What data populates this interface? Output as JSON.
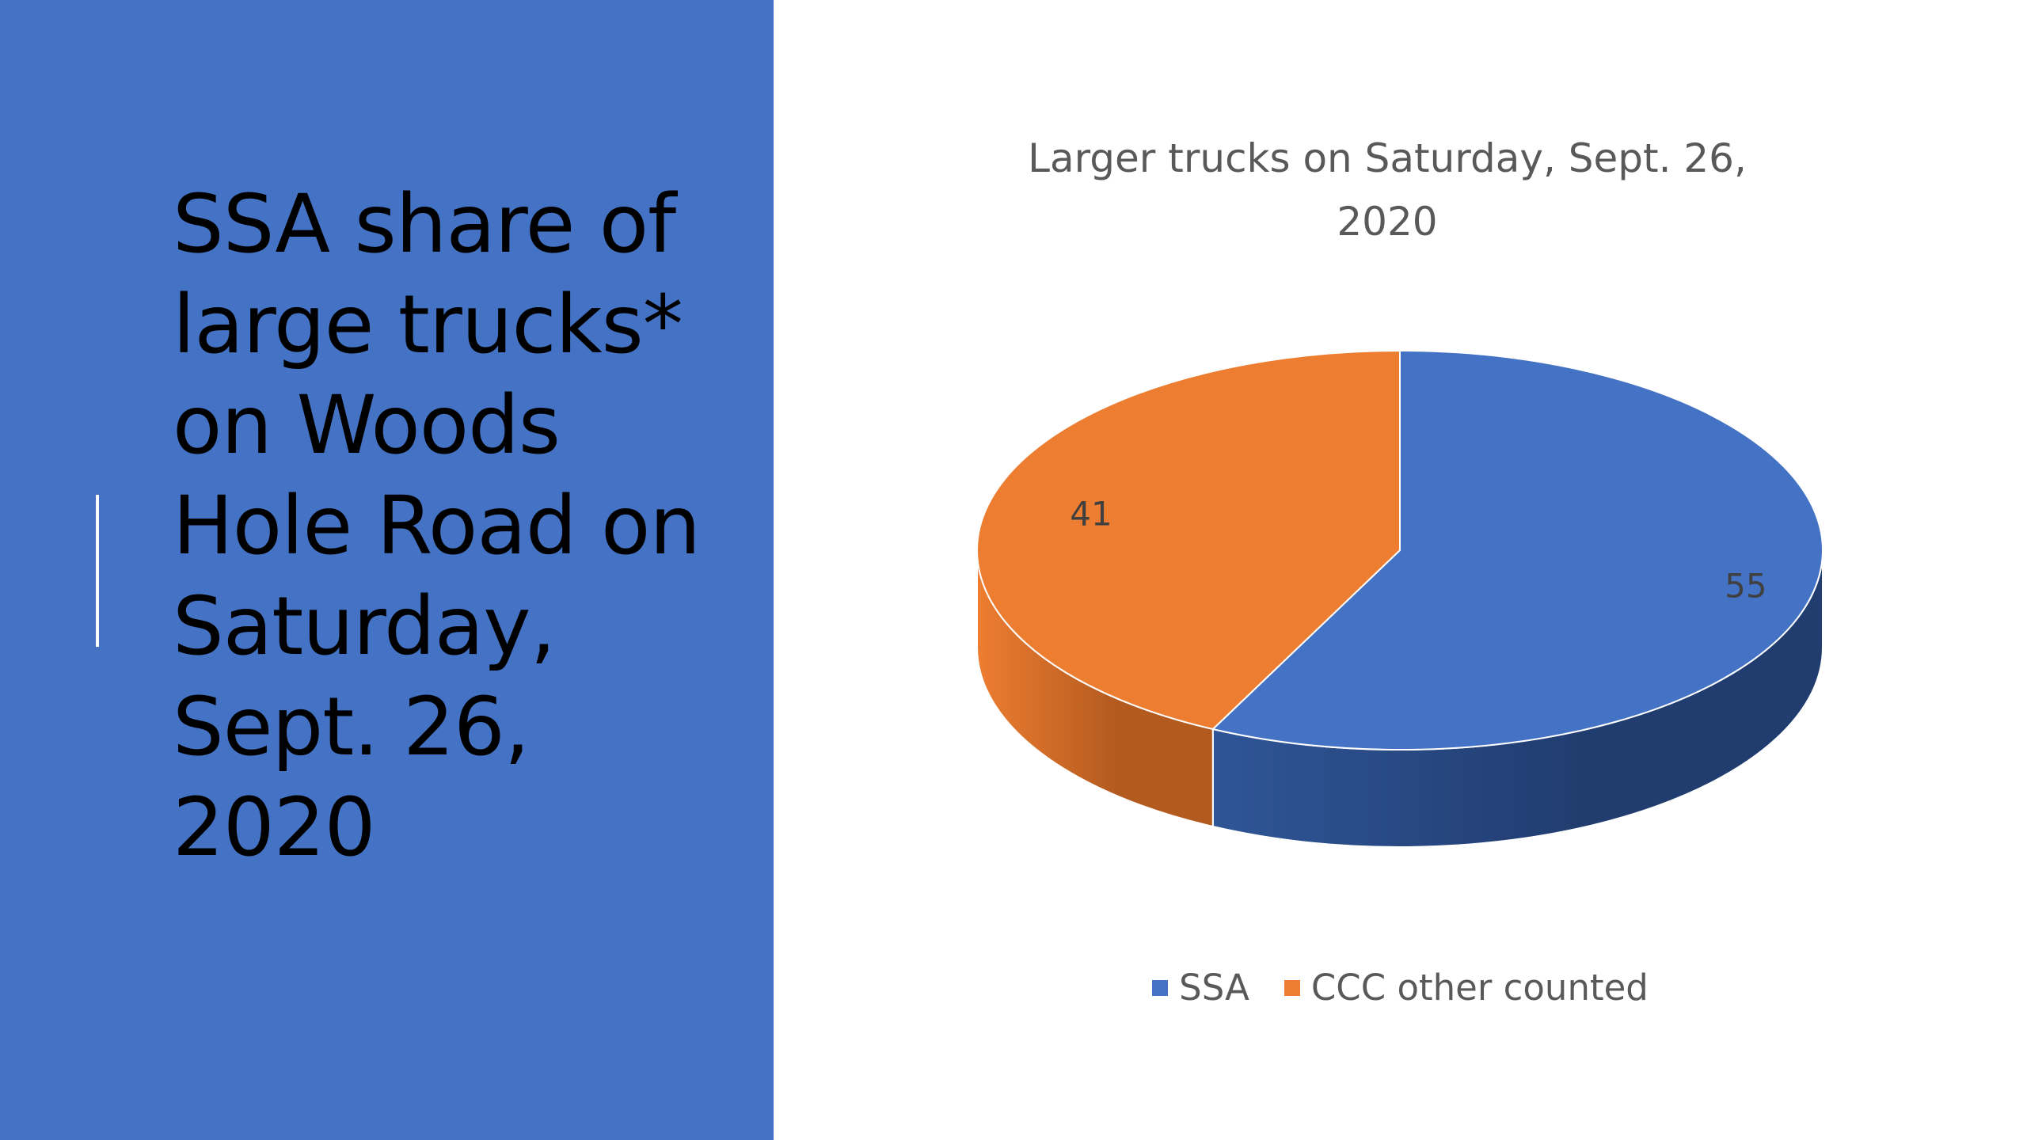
{
  "slide": {
    "title": "SSA share of large trucks* on Woods Hole Road on Saturday, Sept. 26, 2020",
    "panel_color": "#4472c4"
  },
  "chart_data": {
    "type": "pie",
    "title": "Larger trucks on Saturday, Sept. 26, 2020",
    "three_d": true,
    "categories": [
      "SSA",
      "CCC other counted"
    ],
    "values": [
      55,
      41
    ],
    "colors": [
      "#4472c4",
      "#ed7d31"
    ],
    "side_colors": [
      "#213d70",
      "#b35a1f"
    ],
    "data_labels": [
      "55",
      "41"
    ],
    "legend": {
      "position": "bottom",
      "items": [
        {
          "label": "SSA",
          "color": "#4472c4"
        },
        {
          "label": "CCC other counted",
          "color": "#ed7d31"
        }
      ]
    }
  }
}
